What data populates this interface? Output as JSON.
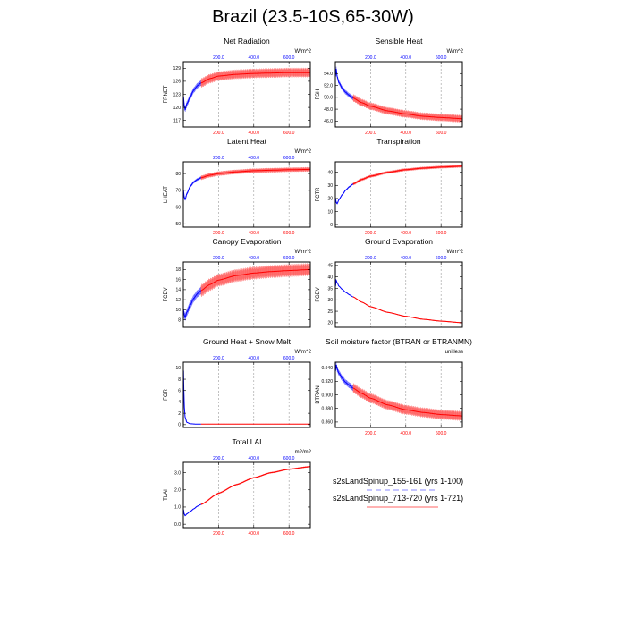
{
  "title": "Brazil (23.5-10S,65-30W)",
  "legend": [
    {
      "label": "s2sLandSpinup_155-161 (yrs 1-100)",
      "color": "#0000ff",
      "style": "dashed"
    },
    {
      "label": "s2sLandSpinup_713-720 (yrs 1-721)",
      "color": "#ff0000",
      "style": "solid"
    }
  ],
  "colors": {
    "blue": "#0000ff",
    "red": "#ff0000",
    "band_red": "#ff6666",
    "grid": "#999999"
  },
  "chart_data": [
    {
      "type": "line",
      "title": "Net Radiation",
      "ylabel": "FRNET",
      "units": "W/m^2",
      "yticks": [
        "117",
        "120",
        "123",
        "126",
        "129"
      ],
      "ylim": [
        115.5,
        130.5
      ],
      "top_ticks": [
        "200.0",
        "400.0",
        "600.0"
      ],
      "bottom_ticks": [
        "200.0",
        "400.0",
        "600.0"
      ],
      "xlim": [
        0,
        721
      ],
      "grid_x": [
        200,
        400,
        600
      ],
      "blue": [
        [
          1,
          122.5
        ],
        [
          5,
          120.5
        ],
        [
          10,
          119.5
        ],
        [
          20,
          120.8
        ],
        [
          40,
          122.5
        ],
        [
          60,
          124
        ],
        [
          80,
          125
        ],
        [
          100,
          125.6
        ]
      ],
      "red": [
        [
          100,
          125.6
        ],
        [
          150,
          126.6
        ],
        [
          200,
          127.2
        ],
        [
          300,
          127.6
        ],
        [
          400,
          127.8
        ],
        [
          500,
          127.9
        ],
        [
          600,
          128
        ],
        [
          721,
          128
        ]
      ],
      "band": 1.2
    },
    {
      "type": "line",
      "title": "Sensible Heat",
      "ylabel": "FSH",
      "units": "W/m^2",
      "yticks": [
        "46.0",
        "48.0",
        "50.0",
        "52.0",
        "54.0"
      ],
      "ylim": [
        45,
        56
      ],
      "top_ticks": [
        "200.0",
        "400.0",
        "600.0"
      ],
      "bottom_ticks": [
        "200.0",
        "400.0",
        "600.0"
      ],
      "xlim": [
        0,
        721
      ],
      "grid_x": [
        200,
        400,
        600
      ],
      "blue": [
        [
          1,
          53.5
        ],
        [
          5,
          54.8
        ],
        [
          10,
          53.5
        ],
        [
          20,
          52.5
        ],
        [
          40,
          51.5
        ],
        [
          60,
          50.8
        ],
        [
          80,
          50.3
        ],
        [
          100,
          49.9
        ]
      ],
      "red": [
        [
          100,
          49.9
        ],
        [
          150,
          49.1
        ],
        [
          200,
          48.5
        ],
        [
          300,
          47.7
        ],
        [
          400,
          47.2
        ],
        [
          500,
          46.8
        ],
        [
          600,
          46.6
        ],
        [
          721,
          46.4
        ]
      ],
      "band": 0.7
    },
    {
      "type": "line",
      "title": "Latent Heat",
      "ylabel": "LHEAT",
      "units": "W/m^2",
      "yticks": [
        "50",
        "60",
        "70",
        "80"
      ],
      "ylim": [
        48,
        87
      ],
      "top_ticks": [
        "200.0",
        "400.0",
        "600.0"
      ],
      "bottom_ticks": [
        "200.0",
        "400.0",
        "600.0"
      ],
      "xlim": [
        0,
        721
      ],
      "grid_x": [
        200,
        400,
        600
      ],
      "blue": [
        [
          1,
          70
        ],
        [
          5,
          66
        ],
        [
          10,
          64.5
        ],
        [
          20,
          68
        ],
        [
          40,
          72.5
        ],
        [
          60,
          75
        ],
        [
          80,
          76.5
        ],
        [
          100,
          77.5
        ]
      ],
      "red": [
        [
          100,
          77.5
        ],
        [
          150,
          79
        ],
        [
          200,
          80
        ],
        [
          300,
          81
        ],
        [
          400,
          81.7
        ],
        [
          500,
          82
        ],
        [
          600,
          82.3
        ],
        [
          721,
          82.5
        ]
      ],
      "band": 1.5
    },
    {
      "type": "line",
      "title": "Transpiration",
      "ylabel": "FCTR",
      "units": "",
      "yticks": [
        "0",
        "10",
        "20",
        "30",
        "40"
      ],
      "ylim": [
        -2,
        48
      ],
      "top_ticks": [],
      "bottom_ticks": [
        "200.0",
        "400.0",
        "600.0"
      ],
      "xlim": [
        0,
        721
      ],
      "grid_x": [
        200,
        400,
        600
      ],
      "blue": [
        [
          1,
          20
        ],
        [
          5,
          17
        ],
        [
          10,
          16
        ],
        [
          20,
          19
        ],
        [
          40,
          23
        ],
        [
          60,
          26.5
        ],
        [
          80,
          29
        ],
        [
          100,
          31
        ]
      ],
      "red": [
        [
          100,
          31
        ],
        [
          150,
          34.5
        ],
        [
          200,
          37
        ],
        [
          300,
          40
        ],
        [
          400,
          42
        ],
        [
          500,
          43.2
        ],
        [
          600,
          44
        ],
        [
          721,
          44.7
        ]
      ],
      "band": 1.2
    },
    {
      "type": "line",
      "title": "Canopy Evaporation",
      "ylabel": "FCEV",
      "units": "W/m^2",
      "yticks": [
        "8",
        "10",
        "12",
        "14",
        "16",
        "18"
      ],
      "ylim": [
        6.5,
        19.5
      ],
      "top_ticks": [
        "200.0",
        "400.0",
        "600.0"
      ],
      "bottom_ticks": [],
      "xlim": [
        0,
        721
      ],
      "grid_x": [
        200,
        400,
        600
      ],
      "blue": [
        [
          1,
          10
        ],
        [
          5,
          9
        ],
        [
          10,
          8.5
        ],
        [
          20,
          9.5
        ],
        [
          40,
          11
        ],
        [
          60,
          12.3
        ],
        [
          80,
          13.2
        ],
        [
          100,
          13.8
        ]
      ],
      "red": [
        [
          100,
          13.8
        ],
        [
          150,
          15
        ],
        [
          200,
          15.9
        ],
        [
          300,
          16.8
        ],
        [
          400,
          17.3
        ],
        [
          500,
          17.6
        ],
        [
          600,
          17.8
        ],
        [
          721,
          18
        ]
      ],
      "band": 1.4
    },
    {
      "type": "line",
      "title": "Ground Evaporation",
      "ylabel": "FGEV",
      "units": "W/m^2",
      "yticks": [
        "20",
        "25",
        "30",
        "35",
        "40",
        "45"
      ],
      "ylim": [
        18,
        46.5
      ],
      "top_ticks": [
        "200.0",
        "400.0",
        "600.0"
      ],
      "bottom_ticks": [],
      "xlim": [
        0,
        721
      ],
      "grid_x": [
        200,
        400,
        600
      ],
      "blue": [
        [
          1,
          36
        ],
        [
          5,
          38.5
        ],
        [
          10,
          37.5
        ],
        [
          20,
          36
        ],
        [
          40,
          34.5
        ],
        [
          60,
          33.2
        ],
        [
          80,
          32.2
        ],
        [
          100,
          31.3
        ]
      ],
      "red": [
        [
          100,
          31.3
        ],
        [
          150,
          29
        ],
        [
          200,
          27
        ],
        [
          300,
          24.5
        ],
        [
          400,
          22.8
        ],
        [
          500,
          21.5
        ],
        [
          600,
          20.7
        ],
        [
          721,
          20
        ]
      ],
      "band": 0.25
    },
    {
      "type": "line",
      "title": "Ground Heat + Snow Melt",
      "ylabel": "FGR",
      "units": "W/m^2",
      "yticks": [
        "0",
        "2",
        "4",
        "6",
        "8",
        "10"
      ],
      "ylim": [
        -0.5,
        11
      ],
      "top_ticks": [
        "200.0",
        "400.0",
        "600.0"
      ],
      "bottom_ticks": [],
      "xlim": [
        0,
        721
      ],
      "grid_x": [
        200,
        400,
        600
      ],
      "blue": [
        [
          1,
          9.5
        ],
        [
          3,
          6
        ],
        [
          6,
          3
        ],
        [
          10,
          1.3
        ],
        [
          20,
          0.4
        ],
        [
          40,
          0.15
        ],
        [
          70,
          0.1
        ],
        [
          100,
          0.1
        ]
      ],
      "red": [
        [
          100,
          0.1
        ],
        [
          721,
          0.1
        ]
      ],
      "band": 0.05
    },
    {
      "type": "line",
      "title": "Soil moisture factor (BTRAN or BTRANMN)",
      "ylabel": "BTRAN",
      "units": "unitless",
      "yticks": [
        "0.860",
        "0.880",
        "0.900",
        "0.920",
        "0.940"
      ],
      "ylim": [
        0.852,
        0.948
      ],
      "top_ticks": [],
      "bottom_ticks": [
        "200.0",
        "400.0",
        "600.0"
      ],
      "xlim": [
        0,
        721
      ],
      "grid_x": [
        200,
        400,
        600
      ],
      "blue": [
        [
          1,
          0.935
        ],
        [
          5,
          0.944
        ],
        [
          10,
          0.938
        ],
        [
          20,
          0.932
        ],
        [
          40,
          0.924
        ],
        [
          60,
          0.918
        ],
        [
          80,
          0.914
        ],
        [
          100,
          0.91
        ]
      ],
      "red": [
        [
          100,
          0.91
        ],
        [
          150,
          0.902
        ],
        [
          200,
          0.895
        ],
        [
          300,
          0.885
        ],
        [
          400,
          0.878
        ],
        [
          500,
          0.874
        ],
        [
          600,
          0.871
        ],
        [
          721,
          0.869
        ]
      ],
      "band": 0.008
    },
    {
      "type": "line",
      "title": "Total LAI",
      "ylabel": "TLAI",
      "units": "m2/m2",
      "yticks": [
        "0.0",
        "1.0",
        "2.0",
        "3.0"
      ],
      "ylim": [
        -0.2,
        3.6
      ],
      "top_ticks": [
        "200.0",
        "400.0",
        "600.0"
      ],
      "bottom_ticks": [
        "200.0",
        "400.0",
        "600.0"
      ],
      "xlim": [
        0,
        721
      ],
      "grid_x": [
        200,
        400,
        600
      ],
      "blue": [
        [
          1,
          0.85
        ],
        [
          5,
          0.6
        ],
        [
          10,
          0.5
        ],
        [
          20,
          0.6
        ],
        [
          40,
          0.75
        ],
        [
          60,
          0.9
        ],
        [
          80,
          1.05
        ],
        [
          100,
          1.15
        ]
      ],
      "red": [
        [
          100,
          1.15
        ],
        [
          200,
          1.8
        ],
        [
          300,
          2.3
        ],
        [
          400,
          2.7
        ],
        [
          500,
          3.0
        ],
        [
          600,
          3.2
        ],
        [
          721,
          3.35
        ]
      ],
      "band": 0.05
    }
  ]
}
